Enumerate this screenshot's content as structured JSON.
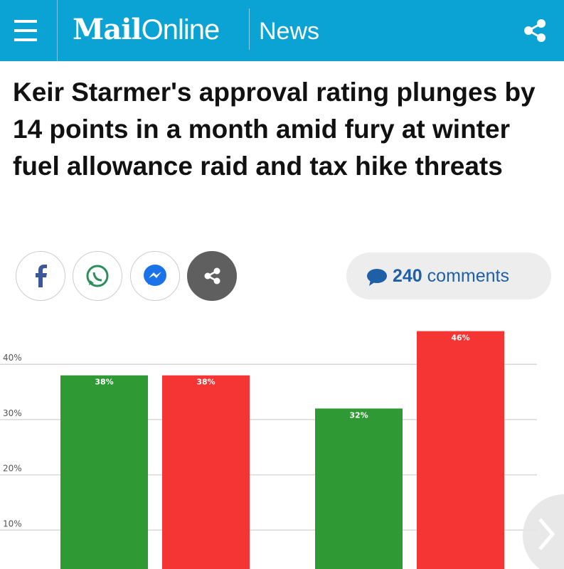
{
  "header": {
    "logo_bold": "Mail",
    "logo_light": "Online",
    "section": "News"
  },
  "headline": "Keir Starmer's approval rating plunges by 14 points in a month amid fury at winter fuel allowance raid and tax hike threats",
  "comments": {
    "count": "240",
    "label": "comments"
  },
  "chart_data": {
    "type": "bar",
    "categories": [
      null,
      null
    ],
    "series": [
      {
        "color": "#2f9a33",
        "values": [
          38,
          32
        ],
        "value_labels": [
          "38%",
          "32%"
        ]
      },
      {
        "color": "#f53434",
        "values": [
          38,
          46
        ],
        "value_labels": [
          "38%",
          "46%"
        ]
      }
    ],
    "ylim": [
      0,
      50
    ],
    "yticks": [
      {
        "value": 10,
        "label": "10%"
      },
      {
        "value": 20,
        "label": "20%"
      },
      {
        "value": 30,
        "label": "30%"
      },
      {
        "value": 40,
        "label": "40%"
      }
    ],
    "grid": true
  }
}
